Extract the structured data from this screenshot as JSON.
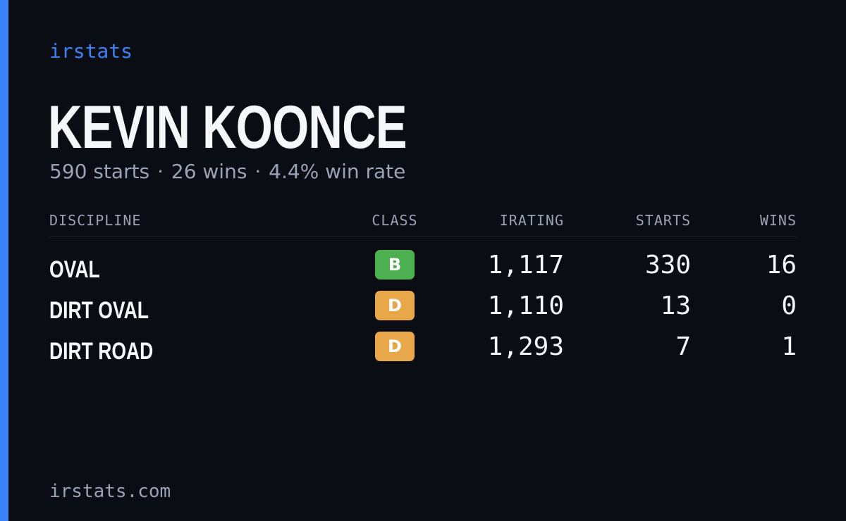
{
  "brand": "irstats",
  "player": {
    "name": "KEVIN KOONCE",
    "starts_text": "590 starts",
    "wins_text": "26 wins",
    "winrate_text": "4.4% win rate",
    "separator": "·"
  },
  "table": {
    "headers": {
      "discipline": "DISCIPLINE",
      "class": "CLASS",
      "irating": "IRATING",
      "starts": "STARTS",
      "wins": "WINS"
    },
    "rows": [
      {
        "discipline": "OVAL",
        "class": "B",
        "class_color": "#4caf50",
        "irating": "1,117",
        "starts": "330",
        "wins": "16"
      },
      {
        "discipline": "DIRT OVAL",
        "class": "D",
        "class_color": "#e8a84a",
        "irating": "1,110",
        "starts": "13",
        "wins": "0"
      },
      {
        "discipline": "DIRT ROAD",
        "class": "D",
        "class_color": "#e8a84a",
        "irating": "1,293",
        "starts": "7",
        "wins": "1"
      }
    ]
  },
  "footer": "irstats.com",
  "colors": {
    "accent": "#3b82f6",
    "background": "#0a0d14",
    "muted_text": "#9aa3b5",
    "class_b": "#4caf50",
    "class_d": "#e8a84a"
  }
}
